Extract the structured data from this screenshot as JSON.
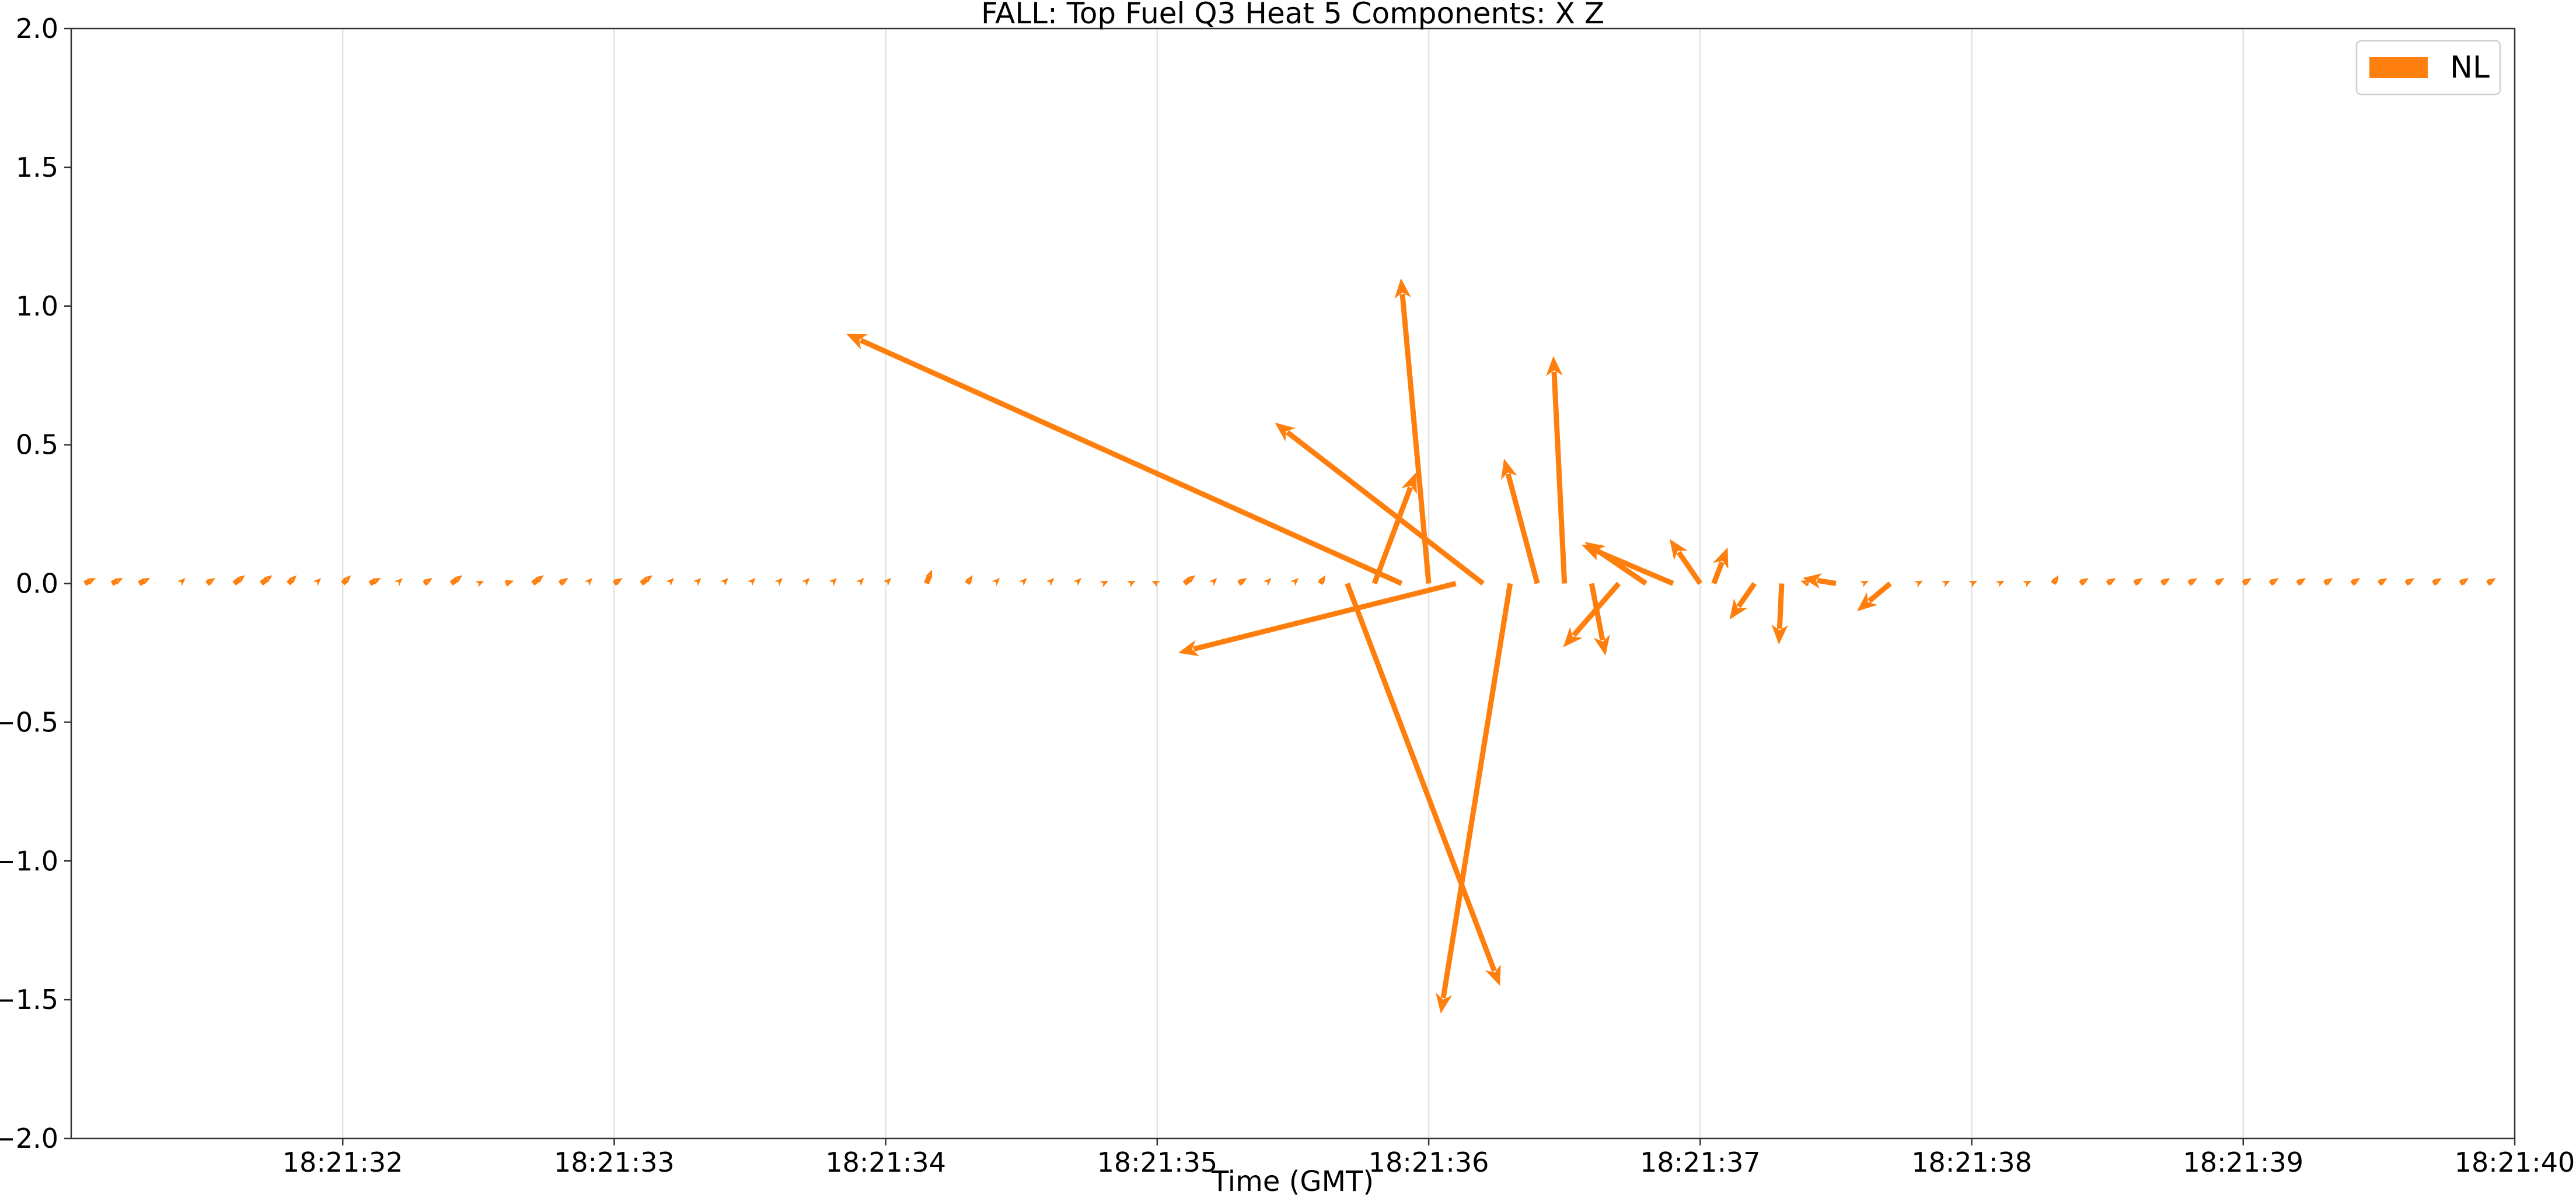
{
  "chart_data": {
    "type": "quiver",
    "title": "FALL: Top Fuel Q3 Heat 5 Components: X Z",
    "xlabel": "Time (GMT)",
    "ylabel": "",
    "x_range": [
      "18:21:31.000",
      "18:21:40.000"
    ],
    "ylim": [
      -2.0,
      2.0
    ],
    "yticks": [
      "2.0",
      "1.5",
      "1.0",
      "0.5",
      "0.0",
      "−0.5",
      "−1.0",
      "−1.5",
      "−2.0"
    ],
    "xticks": [
      "18:21:32",
      "18:21:33",
      "18:21:34",
      "18:21:35",
      "18:21:36",
      "18:21:37",
      "18:21:38",
      "18:21:39",
      "18:21:40"
    ],
    "grid": "vertical",
    "legend_position": "top-right",
    "series": [
      {
        "name": "NL",
        "color": "#ff7f0e",
        "vectors": [
          {
            "t": "18:21:36.100",
            "u": -1.0,
            "v": -0.25
          },
          {
            "t": "18:21:35.900",
            "u": -2.0,
            "v": 0.9
          },
          {
            "t": "18:21:36.000",
            "u": -0.1,
            "v": 1.1
          },
          {
            "t": "18:21:36.200",
            "u": -0.75,
            "v": 0.58
          },
          {
            "t": "18:21:35.800",
            "u": 0.15,
            "v": 0.4
          },
          {
            "t": "18:21:35.700",
            "u": 0.55,
            "v": -1.45
          },
          {
            "t": "18:21:36.300",
            "u": -0.25,
            "v": -1.55
          },
          {
            "t": "18:21:36.400",
            "u": -0.12,
            "v": 0.45
          },
          {
            "t": "18:21:36.500",
            "u": -0.04,
            "v": 0.82
          },
          {
            "t": "18:21:36.600",
            "u": 0.05,
            "v": -0.26
          },
          {
            "t": "18:21:36.700",
            "u": -0.2,
            "v": -0.23
          },
          {
            "t": "18:21:36.800",
            "u": -0.22,
            "v": 0.15
          },
          {
            "t": "18:21:36.900",
            "u": -0.33,
            "v": 0.14
          },
          {
            "t": "18:21:37.000",
            "u": -0.11,
            "v": 0.16
          },
          {
            "t": "18:21:37.050",
            "u": 0.05,
            "v": 0.13
          },
          {
            "t": "18:21:37.200",
            "u": -0.09,
            "v": -0.13
          },
          {
            "t": "18:21:37.300",
            "u": -0.01,
            "v": -0.22
          },
          {
            "t": "18:21:37.500",
            "u": -0.12,
            "v": 0.02
          },
          {
            "t": "18:21:37.700",
            "u": -0.12,
            "v": -0.1
          },
          {
            "t": "18:21:31.050",
            "u": 0.04,
            "v": 0.02
          },
          {
            "t": "18:21:31.150",
            "u": 0.04,
            "v": 0.02
          },
          {
            "t": "18:21:31.250",
            "u": 0.04,
            "v": 0.02
          },
          {
            "t": "18:21:31.400",
            "u": 0.02,
            "v": 0.02
          },
          {
            "t": "18:21:31.500",
            "u": 0.03,
            "v": 0.02
          },
          {
            "t": "18:21:31.600",
            "u": 0.04,
            "v": 0.03
          },
          {
            "t": "18:21:31.700",
            "u": 0.04,
            "v": 0.03
          },
          {
            "t": "18:21:31.800",
            "u": 0.03,
            "v": 0.03
          },
          {
            "t": "18:21:31.900",
            "u": 0.02,
            "v": 0.02
          },
          {
            "t": "18:21:32.000",
            "u": 0.03,
            "v": 0.03
          },
          {
            "t": "18:21:32.100",
            "u": 0.04,
            "v": 0.02
          },
          {
            "t": "18:21:32.200",
            "u": 0.02,
            "v": 0.02
          },
          {
            "t": "18:21:32.300",
            "u": 0.03,
            "v": 0.02
          },
          {
            "t": "18:21:32.400",
            "u": 0.04,
            "v": 0.03
          },
          {
            "t": "18:21:32.500",
            "u": 0.02,
            "v": 0.01
          },
          {
            "t": "18:21:32.600",
            "u": 0.03,
            "v": 0.01
          },
          {
            "t": "18:21:32.700",
            "u": 0.04,
            "v": 0.03
          },
          {
            "t": "18:21:32.800",
            "u": 0.03,
            "v": 0.02
          },
          {
            "t": "18:21:32.900",
            "u": 0.02,
            "v": 0.02
          },
          {
            "t": "18:21:33.000",
            "u": 0.03,
            "v": 0.02
          },
          {
            "t": "18:21:33.100",
            "u": 0.04,
            "v": 0.03
          },
          {
            "t": "18:21:33.200",
            "u": 0.02,
            "v": 0.02
          },
          {
            "t": "18:21:33.300",
            "u": 0.02,
            "v": 0.02
          },
          {
            "t": "18:21:33.400",
            "u": 0.02,
            "v": 0.02
          },
          {
            "t": "18:21:33.500",
            "u": 0.02,
            "v": 0.02
          },
          {
            "t": "18:21:33.600",
            "u": 0.02,
            "v": 0.02
          },
          {
            "t": "18:21:33.700",
            "u": 0.02,
            "v": 0.02
          },
          {
            "t": "18:21:33.800",
            "u": 0.02,
            "v": 0.02
          },
          {
            "t": "18:21:33.900",
            "u": 0.02,
            "v": 0.02
          },
          {
            "t": "18:21:34.000",
            "u": 0.02,
            "v": 0.02
          },
          {
            "t": "18:21:34.150",
            "u": 0.02,
            "v": 0.05
          },
          {
            "t": "18:21:34.300",
            "u": 0.02,
            "v": 0.03
          },
          {
            "t": "18:21:34.400",
            "u": 0.02,
            "v": 0.02
          },
          {
            "t": "18:21:34.500",
            "u": 0.02,
            "v": 0.02
          },
          {
            "t": "18:21:34.600",
            "u": 0.02,
            "v": 0.02
          },
          {
            "t": "18:21:34.700",
            "u": 0.02,
            "v": 0.02
          },
          {
            "t": "18:21:34.800",
            "u": 0.02,
            "v": 0.01
          },
          {
            "t": "18:21:34.900",
            "u": 0.02,
            "v": 0.01
          },
          {
            "t": "18:21:35.000",
            "u": -0.02,
            "v": 0.01
          },
          {
            "t": "18:21:35.100",
            "u": 0.04,
            "v": 0.03
          },
          {
            "t": "18:21:35.200",
            "u": 0.02,
            "v": 0.02
          },
          {
            "t": "18:21:35.300",
            "u": 0.03,
            "v": 0.02
          },
          {
            "t": "18:21:35.400",
            "u": 0.02,
            "v": 0.02
          },
          {
            "t": "18:21:35.500",
            "u": 0.02,
            "v": 0.02
          },
          {
            "t": "18:21:35.600",
            "u": 0.02,
            "v": 0.03
          },
          {
            "t": "18:21:37.400",
            "u": -0.03,
            "v": 0.01
          },
          {
            "t": "18:21:37.600",
            "u": 0.02,
            "v": 0.01
          },
          {
            "t": "18:21:37.800",
            "u": 0.02,
            "v": 0.01
          },
          {
            "t": "18:21:37.900",
            "u": 0.02,
            "v": 0.01
          },
          {
            "t": "18:21:38.000",
            "u": 0.02,
            "v": 0.01
          },
          {
            "t": "18:21:38.100",
            "u": 0.02,
            "v": 0.01
          },
          {
            "t": "18:21:38.200",
            "u": 0.02,
            "v": 0.01
          },
          {
            "t": "18:21:38.300",
            "u": 0.02,
            "v": 0.03
          },
          {
            "t": "18:21:38.400",
            "u": 0.03,
            "v": 0.02
          },
          {
            "t": "18:21:38.500",
            "u": 0.03,
            "v": 0.02
          },
          {
            "t": "18:21:38.600",
            "u": 0.03,
            "v": 0.02
          },
          {
            "t": "18:21:38.700",
            "u": 0.03,
            "v": 0.02
          },
          {
            "t": "18:21:38.800",
            "u": 0.03,
            "v": 0.02
          },
          {
            "t": "18:21:38.900",
            "u": 0.03,
            "v": 0.02
          },
          {
            "t": "18:21:39.000",
            "u": 0.03,
            "v": 0.02
          },
          {
            "t": "18:21:39.100",
            "u": 0.03,
            "v": 0.02
          },
          {
            "t": "18:21:39.200",
            "u": 0.03,
            "v": 0.02
          },
          {
            "t": "18:21:39.300",
            "u": 0.03,
            "v": 0.02
          },
          {
            "t": "18:21:39.400",
            "u": 0.03,
            "v": 0.02
          },
          {
            "t": "18:21:39.500",
            "u": 0.03,
            "v": 0.02
          },
          {
            "t": "18:21:39.600",
            "u": 0.03,
            "v": 0.02
          },
          {
            "t": "18:21:39.700",
            "u": 0.03,
            "v": 0.02
          },
          {
            "t": "18:21:39.800",
            "u": 0.03,
            "v": 0.02
          },
          {
            "t": "18:21:39.900",
            "u": 0.03,
            "v": 0.02
          }
        ]
      }
    ]
  }
}
